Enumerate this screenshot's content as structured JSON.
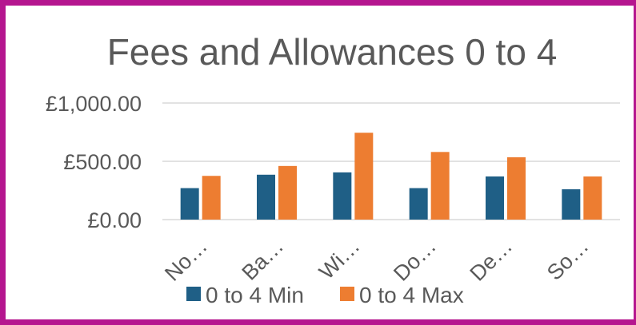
{
  "chart_data": {
    "type": "bar",
    "title": "Fees and Allowances 0 to 4",
    "xlabel": "",
    "ylabel": "",
    "categories": [
      "No…",
      "Ba…",
      "Wi…",
      "Do…",
      "De…",
      "So…"
    ],
    "series": [
      {
        "name": "0 to 4 Min",
        "color": "#1f5f86",
        "values": [
          270,
          385,
          405,
          270,
          370,
          260
        ]
      },
      {
        "name": "0 to 4 Max",
        "color": "#ed7d31",
        "values": [
          375,
          460,
          745,
          580,
          535,
          370
        ]
      }
    ],
    "yticks": [
      {
        "value": 0,
        "label": "£0.00"
      },
      {
        "value": 500,
        "label": "£500.00"
      },
      {
        "value": 1000,
        "label": "£1,000.00"
      }
    ],
    "ylim": [
      0,
      1000
    ],
    "grid": true,
    "legend": "bottom",
    "frame_color": "#b5168f"
  }
}
